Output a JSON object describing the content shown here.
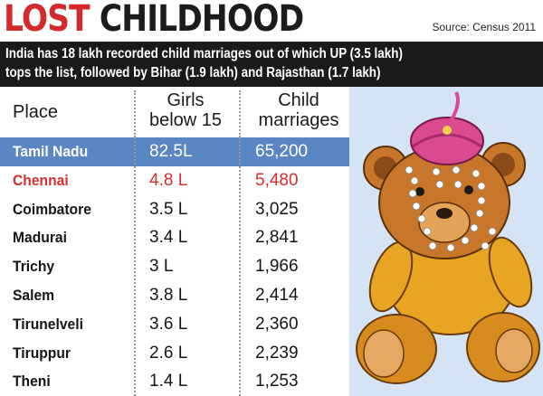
{
  "title": {
    "part1": "LOST",
    "part2": "CHILDHOOD"
  },
  "source": "Source: Census 2011",
  "banner": {
    "line1": "India has 18 lakh recorded child marriages out of which UP (3.5 lakh)",
    "line2": "tops the list, followed by Bihar (1.9 lakh) and Rajasthan (1.7 lakh)"
  },
  "colors": {
    "title_red": "#d42a2e",
    "highlight_blue": "#5a86c4",
    "city_red": "#d32f2f",
    "banner_bg": "#1a1a1a"
  },
  "illustration": "teddy-bear-with-groom-turban-and-flower-garland",
  "chart_data": {
    "type": "table",
    "columns": [
      "Place",
      "Girls below 15",
      "Child marriages"
    ],
    "rows": [
      {
        "place": "Tamil Nadu",
        "girls": "82.5L",
        "marriages": "65,200",
        "style": "highlight"
      },
      {
        "place": "Chennai",
        "girls": "4.8 L",
        "marriages": "5,480",
        "style": "red"
      },
      {
        "place": "Coimbatore",
        "girls": "3.5 L",
        "marriages": "3,025",
        "style": "normal"
      },
      {
        "place": "Madurai",
        "girls": "3.4 L",
        "marriages": "2,841",
        "style": "normal"
      },
      {
        "place": "Trichy",
        "girls": "3 L",
        "marriages": "1,966",
        "style": "normal"
      },
      {
        "place": "Salem",
        "girls": "3.8 L",
        "marriages": "2,414",
        "style": "normal"
      },
      {
        "place": "Tirunelveli",
        "girls": "3.6 L",
        "marriages": "2,360",
        "style": "normal"
      },
      {
        "place": "Tiruppur",
        "girls": "2.6 L",
        "marriages": "2,239",
        "style": "normal"
      },
      {
        "place": "Theni",
        "girls": "1.4 L",
        "marriages": "1,253",
        "style": "normal"
      }
    ]
  }
}
